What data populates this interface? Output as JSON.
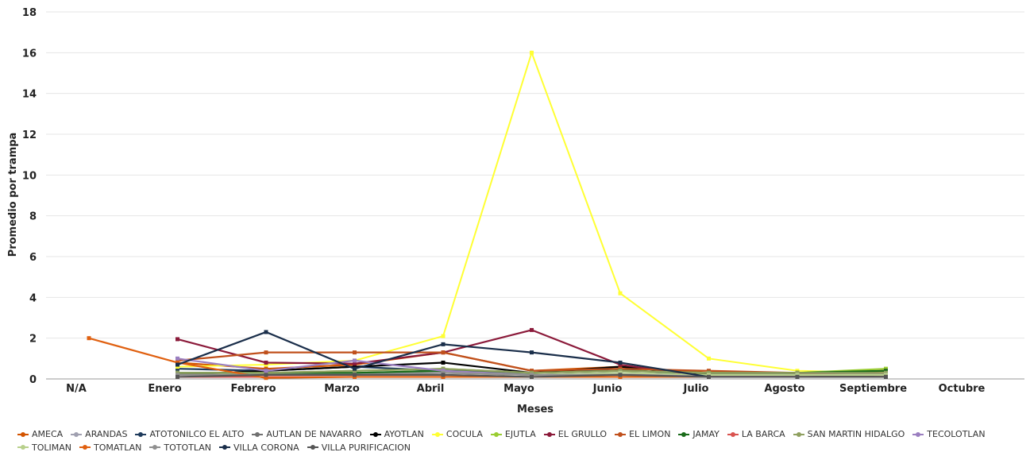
{
  "chart_data": {
    "type": "line",
    "title": "",
    "xlabel": "Meses",
    "ylabel": "Promedio por trampa",
    "ylim": [
      0,
      18
    ],
    "yticks": [
      0,
      2,
      4,
      6,
      8,
      10,
      12,
      14,
      16,
      18
    ],
    "grid": true,
    "legend_position": "bottom",
    "categories": [
      "N/A",
      "Enero",
      "Febrero",
      "Marzo",
      "Abril",
      "Mayo",
      "Junio",
      "Julio",
      "Agosto",
      "Septiembre",
      "Octubre"
    ],
    "series": [
      {
        "name": "AMECA",
        "color": "#d35400",
        "values": [
          null,
          0.8,
          0.5,
          0.7,
          1.3,
          0.4,
          0.6,
          0.3,
          0.3,
          0.4,
          null
        ]
      },
      {
        "name": "ARANDAS",
        "color": "#a0a0b0",
        "values": [
          null,
          0.3,
          0.3,
          0.3,
          0.3,
          0.2,
          0.3,
          0.2,
          0.2,
          0.2,
          null
        ]
      },
      {
        "name": "ATOTONILCO EL ALTO",
        "color": "#1f3b5c",
        "values": [
          null,
          0.5,
          0.4,
          0.6,
          0.4,
          0.3,
          0.5,
          0.1,
          0.2,
          0.1,
          null
        ]
      },
      {
        "name": "AUTLAN DE NAVARRO",
        "color": "#707070",
        "values": [
          null,
          0.2,
          0.2,
          0.2,
          0.3,
          0.2,
          0.2,
          0.1,
          0.1,
          0.1,
          null
        ]
      },
      {
        "name": "AYOTLAN",
        "color": "#000000",
        "values": [
          null,
          0.2,
          0.4,
          0.6,
          0.8,
          0.3,
          0.6,
          0.2,
          0.2,
          0.2,
          null
        ]
      },
      {
        "name": "COCULA",
        "color": "#ffff33",
        "values": [
          null,
          0.6,
          0.7,
          0.9,
          2.1,
          16.0,
          4.2,
          1.0,
          0.4,
          0.3,
          null
        ]
      },
      {
        "name": "EJUTLA",
        "color": "#9acd32",
        "values": [
          null,
          0.3,
          0.3,
          0.4,
          0.5,
          0.3,
          0.4,
          0.3,
          0.3,
          0.5,
          null
        ]
      },
      {
        "name": "EL GRULLO",
        "color": "#8b1a3a",
        "values": [
          null,
          1.95,
          0.8,
          0.75,
          1.3,
          2.4,
          0.7,
          0.1,
          0.2,
          0.4,
          null
        ]
      },
      {
        "name": "EL LIMON",
        "color": "#c0501c",
        "values": [
          null,
          0.9,
          1.3,
          1.3,
          1.3,
          0.4,
          0.5,
          0.4,
          0.3,
          0.3,
          null
        ]
      },
      {
        "name": "JAMAY",
        "color": "#1a6b1a",
        "values": [
          null,
          0.3,
          0.3,
          0.3,
          0.4,
          0.3,
          0.4,
          0.3,
          0.3,
          0.4,
          null
        ]
      },
      {
        "name": "LA BARCA",
        "color": "#d9534f",
        "values": [
          null,
          0.1,
          0.1,
          0.1,
          0.1,
          0.1,
          0.1,
          0.1,
          0.1,
          0.1,
          null
        ]
      },
      {
        "name": "SAN MARTIN HIDALGO",
        "color": "#8fa060",
        "values": [
          null,
          0.3,
          0.3,
          0.4,
          0.5,
          0.3,
          0.4,
          0.3,
          0.3,
          0.3,
          null
        ]
      },
      {
        "name": "TECOLOTLAN",
        "color": "#9b7fc0",
        "values": [
          null,
          1.0,
          0.4,
          0.9,
          0.4,
          0.2,
          0.3,
          0.1,
          0.2,
          0.2,
          null
        ]
      },
      {
        "name": "TOLIMAN",
        "color": "#b8d08c",
        "values": [
          null,
          0.2,
          0.2,
          0.2,
          0.3,
          0.2,
          0.3,
          0.2,
          0.2,
          0.2,
          null
        ]
      },
      {
        "name": "TOMATLAN",
        "color": "#e06010",
        "values": [
          2.0,
          0.8,
          0.05,
          0.1,
          0.1,
          0.1,
          0.1,
          0.1,
          0.1,
          0.1,
          null
        ]
      },
      {
        "name": "TOTOTLAN",
        "color": "#909090",
        "values": [
          null,
          0.2,
          0.2,
          0.2,
          0.3,
          0.2,
          0.2,
          0.1,
          0.1,
          0.1,
          null
        ]
      },
      {
        "name": "VILLA CORONA",
        "color": "#1a2e4a",
        "values": [
          null,
          0.7,
          2.3,
          0.5,
          1.7,
          1.3,
          0.8,
          0.1,
          0.1,
          0.1,
          null
        ]
      },
      {
        "name": "VILLA PURIFICACION",
        "color": "#555555",
        "values": [
          null,
          0.1,
          0.2,
          0.2,
          0.2,
          0.1,
          0.2,
          0.1,
          0.1,
          0.1,
          null
        ]
      }
    ]
  }
}
